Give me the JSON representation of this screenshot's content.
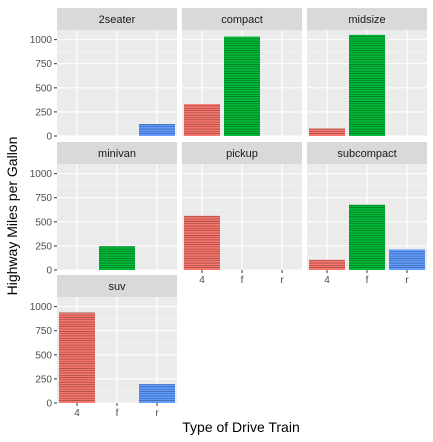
{
  "chart_data": {
    "type": "bar",
    "title": "",
    "xlabel": "Type of Drive Train",
    "ylabel": "Highway Miles per Gallon",
    "categories": [
      "4",
      "f",
      "r"
    ],
    "ylim": [
      0,
      1100
    ],
    "yticks": [
      0,
      250,
      500,
      750,
      1000
    ],
    "grid": true,
    "legend": "none",
    "colors": {
      "4": "#F8766D",
      "f": "#00BA38",
      "r": "#619CFF"
    },
    "panels": [
      {
        "name": "2seater",
        "values": {
          "4": 0,
          "f": 0,
          "r": 124
        }
      },
      {
        "name": "compact",
        "values": {
          "4": 331,
          "f": 1032,
          "r": 0
        }
      },
      {
        "name": "midsize",
        "values": {
          "4": 78,
          "f": 1050,
          "r": 0
        }
      },
      {
        "name": "minivan",
        "values": {
          "4": 0,
          "f": 247,
          "r": 0
        }
      },
      {
        "name": "pickup",
        "values": {
          "4": 562,
          "f": 0,
          "r": 0
        }
      },
      {
        "name": "subcompact",
        "values": {
          "4": 106,
          "f": 677,
          "r": 213
        }
      },
      {
        "name": "suv",
        "values": {
          "4": 937,
          "f": 0,
          "r": 196
        }
      }
    ]
  }
}
